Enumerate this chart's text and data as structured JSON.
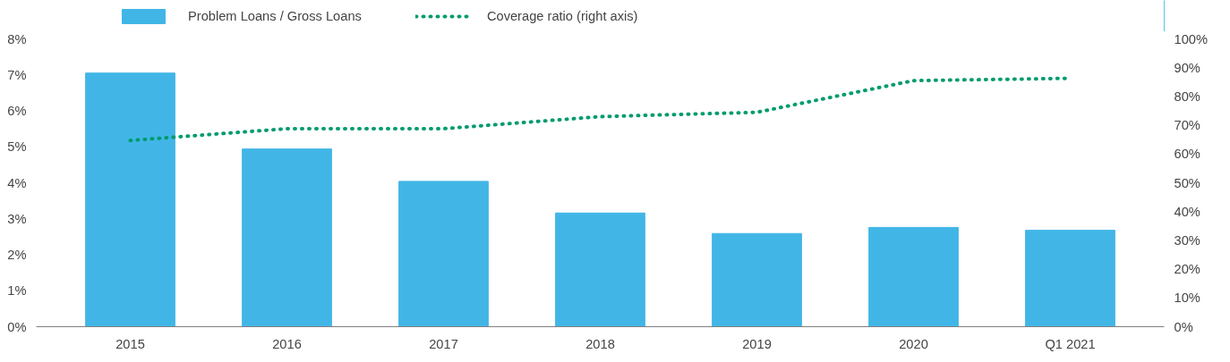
{
  "chart_data": {
    "type": "bar",
    "categories": [
      "2015",
      "2016",
      "2017",
      "2018",
      "2019",
      "2020",
      "Q1 2021"
    ],
    "series": [
      {
        "name": "Problem Loans / Gross Loans",
        "color": "#41b6e6",
        "values": [
          7.05,
          4.94,
          4.04,
          3.16,
          2.59,
          2.76,
          2.68
        ]
      },
      {
        "name": "Coverage ratio (right axis)",
        "type": "line",
        "axis": "y2",
        "color": "#009b6e",
        "values": [
          64.7,
          68.8,
          68.8,
          73.0,
          74.5,
          85.5,
          86.3
        ]
      }
    ],
    "ylim": [
      0,
      8
    ],
    "yticks": [
      {
        "value": 0,
        "label": "0%"
      },
      {
        "value": 1,
        "label": "1%"
      },
      {
        "value": 2,
        "label": "2%"
      },
      {
        "value": 3,
        "label": "3%"
      },
      {
        "value": 4,
        "label": "4%"
      },
      {
        "value": 5,
        "label": "5%"
      },
      {
        "value": 6,
        "label": "6%"
      },
      {
        "value": 7,
        "label": "7%"
      },
      {
        "value": 8,
        "label": "8%"
      }
    ],
    "y2lim": [
      0,
      100
    ],
    "y2ticks": [
      {
        "value": 0,
        "label": "0%"
      },
      {
        "value": 10,
        "label": "10%"
      },
      {
        "value": 20,
        "label": "20%"
      },
      {
        "value": 30,
        "label": "30%"
      },
      {
        "value": 40,
        "label": "40%"
      },
      {
        "value": 50,
        "label": "50%"
      },
      {
        "value": 60,
        "label": "60%"
      },
      {
        "value": 70,
        "label": "70%"
      },
      {
        "value": 80,
        "label": "80%"
      },
      {
        "value": 90,
        "label": "90%"
      },
      {
        "value": 100,
        "label": "100%"
      }
    ],
    "line_style": "dotted",
    "grid": false,
    "legend": "top left"
  }
}
